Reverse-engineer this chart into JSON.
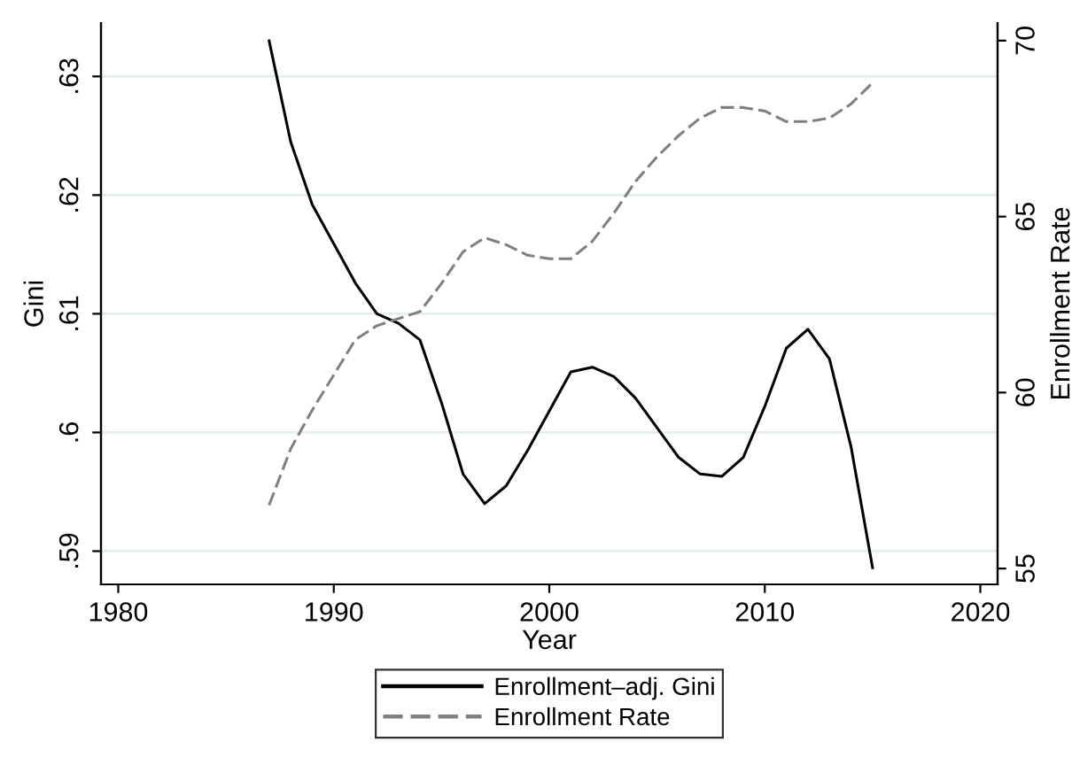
{
  "chart_data": {
    "type": "line",
    "xlabel": "Year",
    "ylabel": "Gini",
    "y2label": "Enrollment Rate",
    "x": [
      1987,
      1988,
      1989,
      1990,
      1991,
      1992,
      1993,
      1994,
      1995,
      1996,
      1997,
      1998,
      1999,
      2000,
      2001,
      2002,
      2003,
      2004,
      2005,
      2006,
      2007,
      2008,
      2009,
      2010,
      2011,
      2012,
      2013,
      2014,
      2015
    ],
    "series": [
      {
        "name": "Enrollment–adj. Gini",
        "color": "#000000",
        "line_style": "solid",
        "values": [
          0.633,
          0.6245,
          0.6192,
          0.6159,
          0.6126,
          0.61,
          0.6092,
          0.6078,
          0.6025,
          0.5965,
          0.594,
          0.5955,
          0.5985,
          0.6018,
          0.6051,
          0.6055,
          0.6047,
          0.6029,
          0.6004,
          0.5979,
          0.5965,
          0.5963,
          0.5979,
          0.6022,
          0.6071,
          0.6087,
          0.6062,
          0.5988,
          0.5886
        ]
      },
      {
        "name": "Enrollment Rate",
        "color": "#808080",
        "line_style": "dashed",
        "axis": "y2",
        "values": [
          56.8,
          58.4,
          59.5,
          60.5,
          61.5,
          61.9,
          62.1,
          62.3,
          63.1,
          64.0,
          64.4,
          64.2,
          63.9,
          63.8,
          63.8,
          64.3,
          65.1,
          66.0,
          66.7,
          67.3,
          67.8,
          68.1,
          68.1,
          68.0,
          67.7,
          67.7,
          67.8,
          68.2,
          68.8
        ]
      }
    ],
    "xlim": [
      1979.2,
      2020.8
    ],
    "xticks": [
      1980,
      1990,
      2000,
      2010,
      2020
    ],
    "ylim": [
      0.5872,
      0.6345
    ],
    "yticks": [
      {
        "value": 0.59,
        "label": ".59"
      },
      {
        "value": 0.6,
        "label": ".6"
      },
      {
        "value": 0.61,
        "label": ".61"
      },
      {
        "value": 0.62,
        "label": ".62"
      },
      {
        "value": 0.63,
        "label": ".63"
      }
    ],
    "y2lim": [
      54.55,
      70.5
    ],
    "y2ticks": [
      55,
      60,
      65,
      70
    ],
    "grid": "y",
    "legend": "bottom"
  }
}
